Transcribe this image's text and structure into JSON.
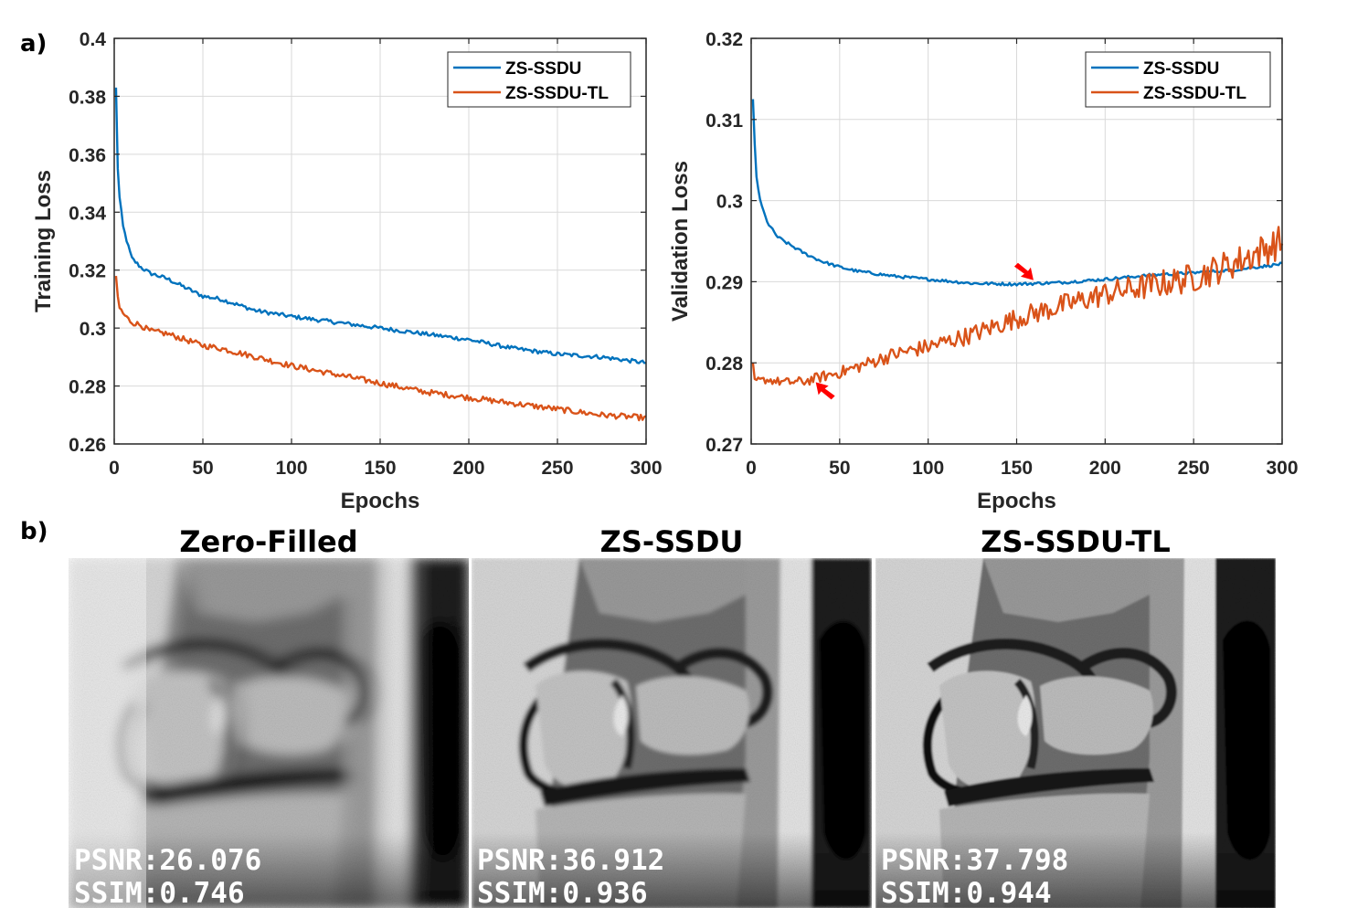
{
  "figure": {
    "label_a": "a)",
    "label_b": "b)"
  },
  "colors": {
    "zs_ssdu": "#0072BD",
    "zs_ssdu_tl": "#D95319",
    "arrow": "#FF0000",
    "grid": "#d9d9d9",
    "axis": "#262626"
  },
  "chart_data": [
    {
      "type": "line",
      "title": "",
      "xlabel": "Epochs",
      "ylabel": "Training Loss",
      "xlim": [
        0,
        300
      ],
      "ylim": [
        0.26,
        0.4
      ],
      "xticks": [
        0,
        50,
        100,
        150,
        200,
        250,
        300
      ],
      "yticks": [
        0.26,
        0.28,
        0.3,
        0.32,
        0.34,
        0.36,
        0.38,
        0.4
      ],
      "ytick_labels": [
        "0.26",
        "0.28",
        "0.3",
        "0.32",
        "0.34",
        "0.36",
        "0.38",
        "0.4"
      ],
      "grid": true,
      "legend": "top-right",
      "series": [
        {
          "name": "ZS-SSDU",
          "color": "#0072BD",
          "x": [
            1,
            2,
            3,
            5,
            8,
            10,
            15,
            20,
            30,
            40,
            50,
            60,
            80,
            100,
            125,
            150,
            175,
            200,
            225,
            250,
            275,
            300
          ],
          "y": [
            0.383,
            0.355,
            0.345,
            0.335,
            0.328,
            0.324,
            0.321,
            0.319,
            0.317,
            0.314,
            0.311,
            0.31,
            0.306,
            0.304,
            0.302,
            0.3,
            0.298,
            0.296,
            0.293,
            0.291,
            0.29,
            0.288
          ]
        },
        {
          "name": "ZS-SSDU-TL",
          "color": "#D95319",
          "x": [
            1,
            2,
            3,
            5,
            8,
            10,
            15,
            20,
            30,
            40,
            50,
            60,
            80,
            100,
            125,
            150,
            175,
            200,
            225,
            250,
            275,
            300
          ],
          "y": [
            0.318,
            0.311,
            0.307,
            0.305,
            0.303,
            0.302,
            0.301,
            0.299,
            0.298,
            0.296,
            0.294,
            0.293,
            0.29,
            0.287,
            0.284,
            0.281,
            0.278,
            0.276,
            0.274,
            0.272,
            0.27,
            0.269
          ]
        }
      ]
    },
    {
      "type": "line",
      "title": "",
      "xlabel": "Epochs",
      "ylabel": "Validation Loss",
      "xlim": [
        0,
        300
      ],
      "ylim": [
        0.27,
        0.32
      ],
      "xticks": [
        0,
        50,
        100,
        150,
        200,
        250,
        300
      ],
      "yticks": [
        0.27,
        0.28,
        0.29,
        0.3,
        0.31,
        0.32
      ],
      "ytick_labels": [
        "0.27",
        "0.28",
        "0.29",
        "0.3",
        "0.31",
        "0.32"
      ],
      "grid": true,
      "legend": "top-right",
      "series": [
        {
          "name": "ZS-SSDU",
          "color": "#0072BD",
          "x": [
            1,
            2,
            3,
            5,
            8,
            10,
            15,
            20,
            30,
            40,
            50,
            60,
            80,
            100,
            125,
            150,
            175,
            200,
            225,
            250,
            275,
            300
          ],
          "y": [
            0.3125,
            0.307,
            0.303,
            0.3,
            0.298,
            0.297,
            0.2955,
            0.2948,
            0.2935,
            0.2925,
            0.2918,
            0.2913,
            0.2907,
            0.2903,
            0.2898,
            0.2897,
            0.2899,
            0.2903,
            0.2908,
            0.2911,
            0.2915,
            0.2922
          ]
        },
        {
          "name": "ZS-SSDU-TL",
          "color": "#D95319",
          "x": [
            1,
            2,
            3,
            5,
            8,
            10,
            15,
            20,
            30,
            40,
            50,
            60,
            80,
            100,
            125,
            150,
            175,
            200,
            225,
            250,
            275,
            300
          ],
          "y": [
            0.28,
            0.278,
            0.2778,
            0.2778,
            0.2779,
            0.2779,
            0.2777,
            0.2776,
            0.2777,
            0.2783,
            0.2788,
            0.2795,
            0.281,
            0.282,
            0.2835,
            0.2855,
            0.287,
            0.2885,
            0.2895,
            0.2905,
            0.2925,
            0.295
          ]
        }
      ],
      "annotations": [
        {
          "type": "arrow",
          "x": 159,
          "y": 0.2903,
          "direction": "down-right"
        },
        {
          "type": "arrow",
          "x": 37,
          "y": 0.2775,
          "direction": "up-left"
        }
      ]
    }
  ],
  "images": [
    {
      "title": "Zero-Filled",
      "psnr": "PSNR:26.076",
      "ssim": "SSIM:0.746"
    },
    {
      "title": "ZS-SSDU",
      "psnr": "PSNR:36.912",
      "ssim": "SSIM:0.936"
    },
    {
      "title": "ZS-SSDU-TL",
      "psnr": "PSNR:37.798",
      "ssim": "SSIM:0.944"
    }
  ]
}
